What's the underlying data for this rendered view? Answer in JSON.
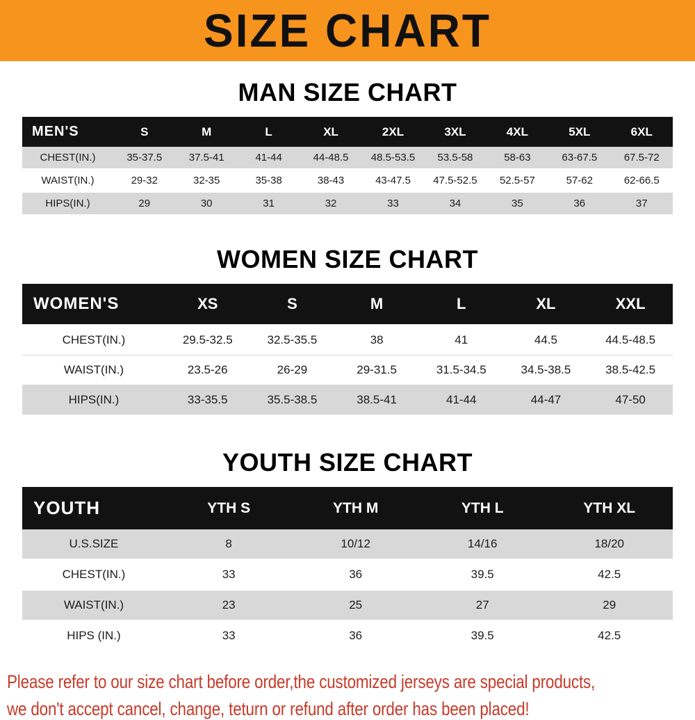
{
  "banner": {
    "title": "SIZE CHART"
  },
  "colors": {
    "banner_bg": "#f7941e",
    "table_header_bg": "#121212",
    "row_stripe": "#d8d8d8",
    "notice_text": "#c53b2a"
  },
  "chart_data": [
    {
      "type": "table",
      "title": "MAN SIZE CHART",
      "header": [
        "MEN'S",
        "S",
        "M",
        "L",
        "XL",
        "2XL",
        "3XL",
        "4XL",
        "5XL",
        "6XL"
      ],
      "rows": [
        [
          "CHEST(IN.)",
          "35-37.5",
          "37.5-41",
          "41-44",
          "44-48.5",
          "48.5-53.5",
          "53.5-58",
          "58-63",
          "63-67.5",
          "67.5-72"
        ],
        [
          "WAIST(IN.)",
          "29-32",
          "32-35",
          "35-38",
          "38-43",
          "43-47.5",
          "47.5-52.5",
          "52.5-57",
          "57-62",
          "62-66.5"
        ],
        [
          "HIPS(IN.)",
          "29",
          "30",
          "31",
          "32",
          "33",
          "34",
          "35",
          "36",
          "37"
        ]
      ]
    },
    {
      "type": "table",
      "title": "WOMEN SIZE CHART",
      "header": [
        "WOMEN'S",
        "XS",
        "S",
        "M",
        "L",
        "XL",
        "XXL"
      ],
      "rows": [
        [
          "CHEST(IN.)",
          "29.5-32.5",
          "32.5-35.5",
          "38",
          "41",
          "44.5",
          "44.5-48.5"
        ],
        [
          "WAIST(IN.)",
          "23.5-26",
          "26-29",
          "29-31.5",
          "31.5-34.5",
          "34.5-38.5",
          "38.5-42.5"
        ],
        [
          "HIPS(IN.)",
          "33-35.5",
          "35.5-38.5",
          "38.5-41",
          "41-44",
          "44-47",
          "47-50"
        ]
      ]
    },
    {
      "type": "table",
      "title": "YOUTH SIZE CHART",
      "header": [
        "YOUTH",
        "YTH S",
        "YTH M",
        "YTH L",
        "YTH XL"
      ],
      "rows": [
        [
          "U.S.SIZE",
          "8",
          "10/12",
          "14/16",
          "18/20"
        ],
        [
          "CHEST(IN.)",
          "33",
          "36",
          "39.5",
          "42.5"
        ],
        [
          "WAIST(IN.)",
          "23",
          "25",
          "27",
          "29"
        ],
        [
          "HIPS (IN.)",
          "33",
          "36",
          "39.5",
          "42.5"
        ]
      ]
    }
  ],
  "notice": {
    "lines": [
      "Please refer to our size chart before order,the customized jerseys are special products,",
      "we don't accept cancel, change, teturn or refund after order has been placed!"
    ]
  }
}
